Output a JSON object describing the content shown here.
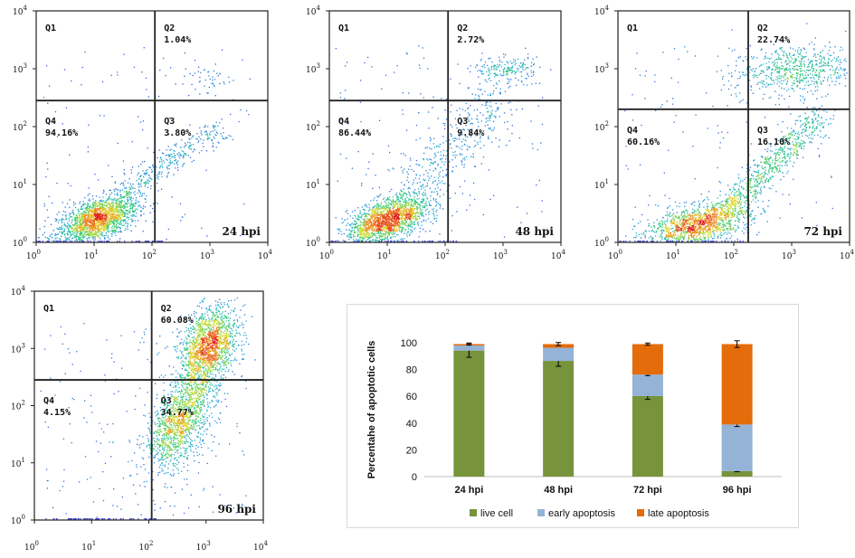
{
  "flow_panels": [
    {
      "id": "24hpi",
      "time_label": "24 hpi",
      "quadrants": {
        "q1": {
          "name": "Q1",
          "value": ""
        },
        "q2": {
          "name": "Q2",
          "value": "1.04%"
        },
        "q3": {
          "name": "Q3",
          "value": "3.80%"
        },
        "q4": {
          "name": "Q4",
          "value": "94.16%"
        }
      },
      "gate": {
        "x": 2.05,
        "y": 2.45
      },
      "populations": [
        {
          "cx": 1.05,
          "cy": 0.4,
          "sx": 0.35,
          "sy": 0.22,
          "rho": 0.55,
          "n": 1800
        },
        {
          "type": "line",
          "x0": 1.5,
          "y0": 0.9,
          "x1": 3.2,
          "y1": 2.0,
          "n": 320,
          "spread": 0.12
        },
        {
          "cx": 2.9,
          "cy": 2.85,
          "sx": 0.25,
          "sy": 0.12,
          "rho": 0.0,
          "n": 40
        },
        {
          "type": "uniform",
          "n": 120
        }
      ]
    },
    {
      "id": "48hpi",
      "time_label": "48 hpi",
      "quadrants": {
        "q1": {
          "name": "Q1",
          "value": ""
        },
        "q2": {
          "name": "Q2",
          "value": "2.72%"
        },
        "q3": {
          "name": "Q3",
          "value": "9.84%"
        },
        "q4": {
          "name": "Q4",
          "value": "86.44%"
        }
      },
      "gate": {
        "x": 2.05,
        "y": 2.45
      },
      "populations": [
        {
          "cx": 1.0,
          "cy": 0.4,
          "sx": 0.35,
          "sy": 0.22,
          "rho": 0.55,
          "n": 1700
        },
        {
          "type": "line",
          "x0": 1.5,
          "y0": 0.9,
          "x1": 3.0,
          "y1": 2.6,
          "n": 420,
          "spread": 0.25
        },
        {
          "cx": 3.05,
          "cy": 3.0,
          "sx": 0.28,
          "sy": 0.1,
          "rho": 0.0,
          "n": 180
        },
        {
          "type": "uniform",
          "n": 150
        }
      ]
    },
    {
      "id": "72hpi",
      "time_label": "72 hpi",
      "quadrants": {
        "q1": {
          "name": "Q1",
          "value": ""
        },
        "q2": {
          "name": "Q2",
          "value": "22.74%"
        },
        "q3": {
          "name": "Q3",
          "value": "16.10%"
        },
        "q4": {
          "name": "Q4",
          "value": "60.16%"
        }
      },
      "gate": {
        "x": 2.25,
        "y": 2.3
      },
      "populations": [
        {
          "cx": 1.35,
          "cy": 0.3,
          "sx": 0.45,
          "sy": 0.2,
          "rho": 0.5,
          "n": 1300
        },
        {
          "type": "line",
          "x0": 1.8,
          "y0": 0.5,
          "x1": 3.5,
          "y1": 2.2,
          "n": 700,
          "spread": 0.13
        },
        {
          "cx": 3.05,
          "cy": 3.0,
          "sx": 0.55,
          "sy": 0.22,
          "rho": 0.2,
          "n": 650
        },
        {
          "type": "uniform",
          "n": 120
        }
      ]
    },
    {
      "id": "96hpi",
      "time_label": "96 hpi",
      "quadrants": {
        "q1": {
          "name": "Q1",
          "value": ""
        },
        "q2": {
          "name": "Q2",
          "value": "60.08%"
        },
        "q3": {
          "name": "Q3",
          "value": "34.77%"
        },
        "q4": {
          "name": "Q4",
          "value": "4.15%"
        }
      },
      "gate": {
        "x": 2.05,
        "y": 2.45
      },
      "populations": [
        {
          "cx": 3.05,
          "cy": 3.05,
          "sx": 0.25,
          "sy": 0.35,
          "rho": 0.3,
          "n": 1400
        },
        {
          "cx": 2.55,
          "cy": 1.7,
          "sx": 0.3,
          "sy": 0.4,
          "rho": 0.5,
          "n": 1000
        },
        {
          "type": "line",
          "x0": 2.2,
          "y0": 1.2,
          "x1": 3.2,
          "y1": 3.4,
          "n": 500,
          "spread": 0.18
        },
        {
          "type": "uniform",
          "n": 220
        }
      ]
    }
  ],
  "flow_axis": {
    "ticks": [
      {
        "base": "10",
        "exp": "0"
      },
      {
        "base": "10",
        "exp": "1"
      },
      {
        "base": "10",
        "exp": "2"
      },
      {
        "base": "10",
        "exp": "3"
      },
      {
        "base": "10",
        "exp": "4"
      }
    ]
  },
  "chart_data": {
    "type": "bar",
    "stacked": true,
    "categories": [
      "24 hpi",
      "48 hpi",
      "72 hpi",
      "96 hpi"
    ],
    "series": [
      {
        "name": "live cell",
        "color": "#77933c",
        "values": [
          94.16,
          86.44,
          60.16,
          4.15
        ],
        "errors": [
          5,
          4,
          2.5,
          0.5
        ]
      },
      {
        "name": "early apoptosis",
        "color": "#95b3d7",
        "values": [
          3.8,
          9.84,
          16.1,
          34.77
        ],
        "errors": [
          0,
          0,
          0.8,
          1.5
        ]
      },
      {
        "name": "late apoptosis",
        "color": "#e46c0a",
        "values": [
          1.04,
          2.72,
          22.74,
          60.08
        ],
        "errors": [
          0.8,
          1.2,
          0.8,
          2.5
        ]
      }
    ],
    "ylabel": "Percentahe of apoptotic cells",
    "ylim": [
      0,
      100
    ],
    "yticks": [
      "0",
      "20",
      "40",
      "60",
      "80",
      "100"
    ],
    "grid": false,
    "legend_position": "bottom"
  }
}
